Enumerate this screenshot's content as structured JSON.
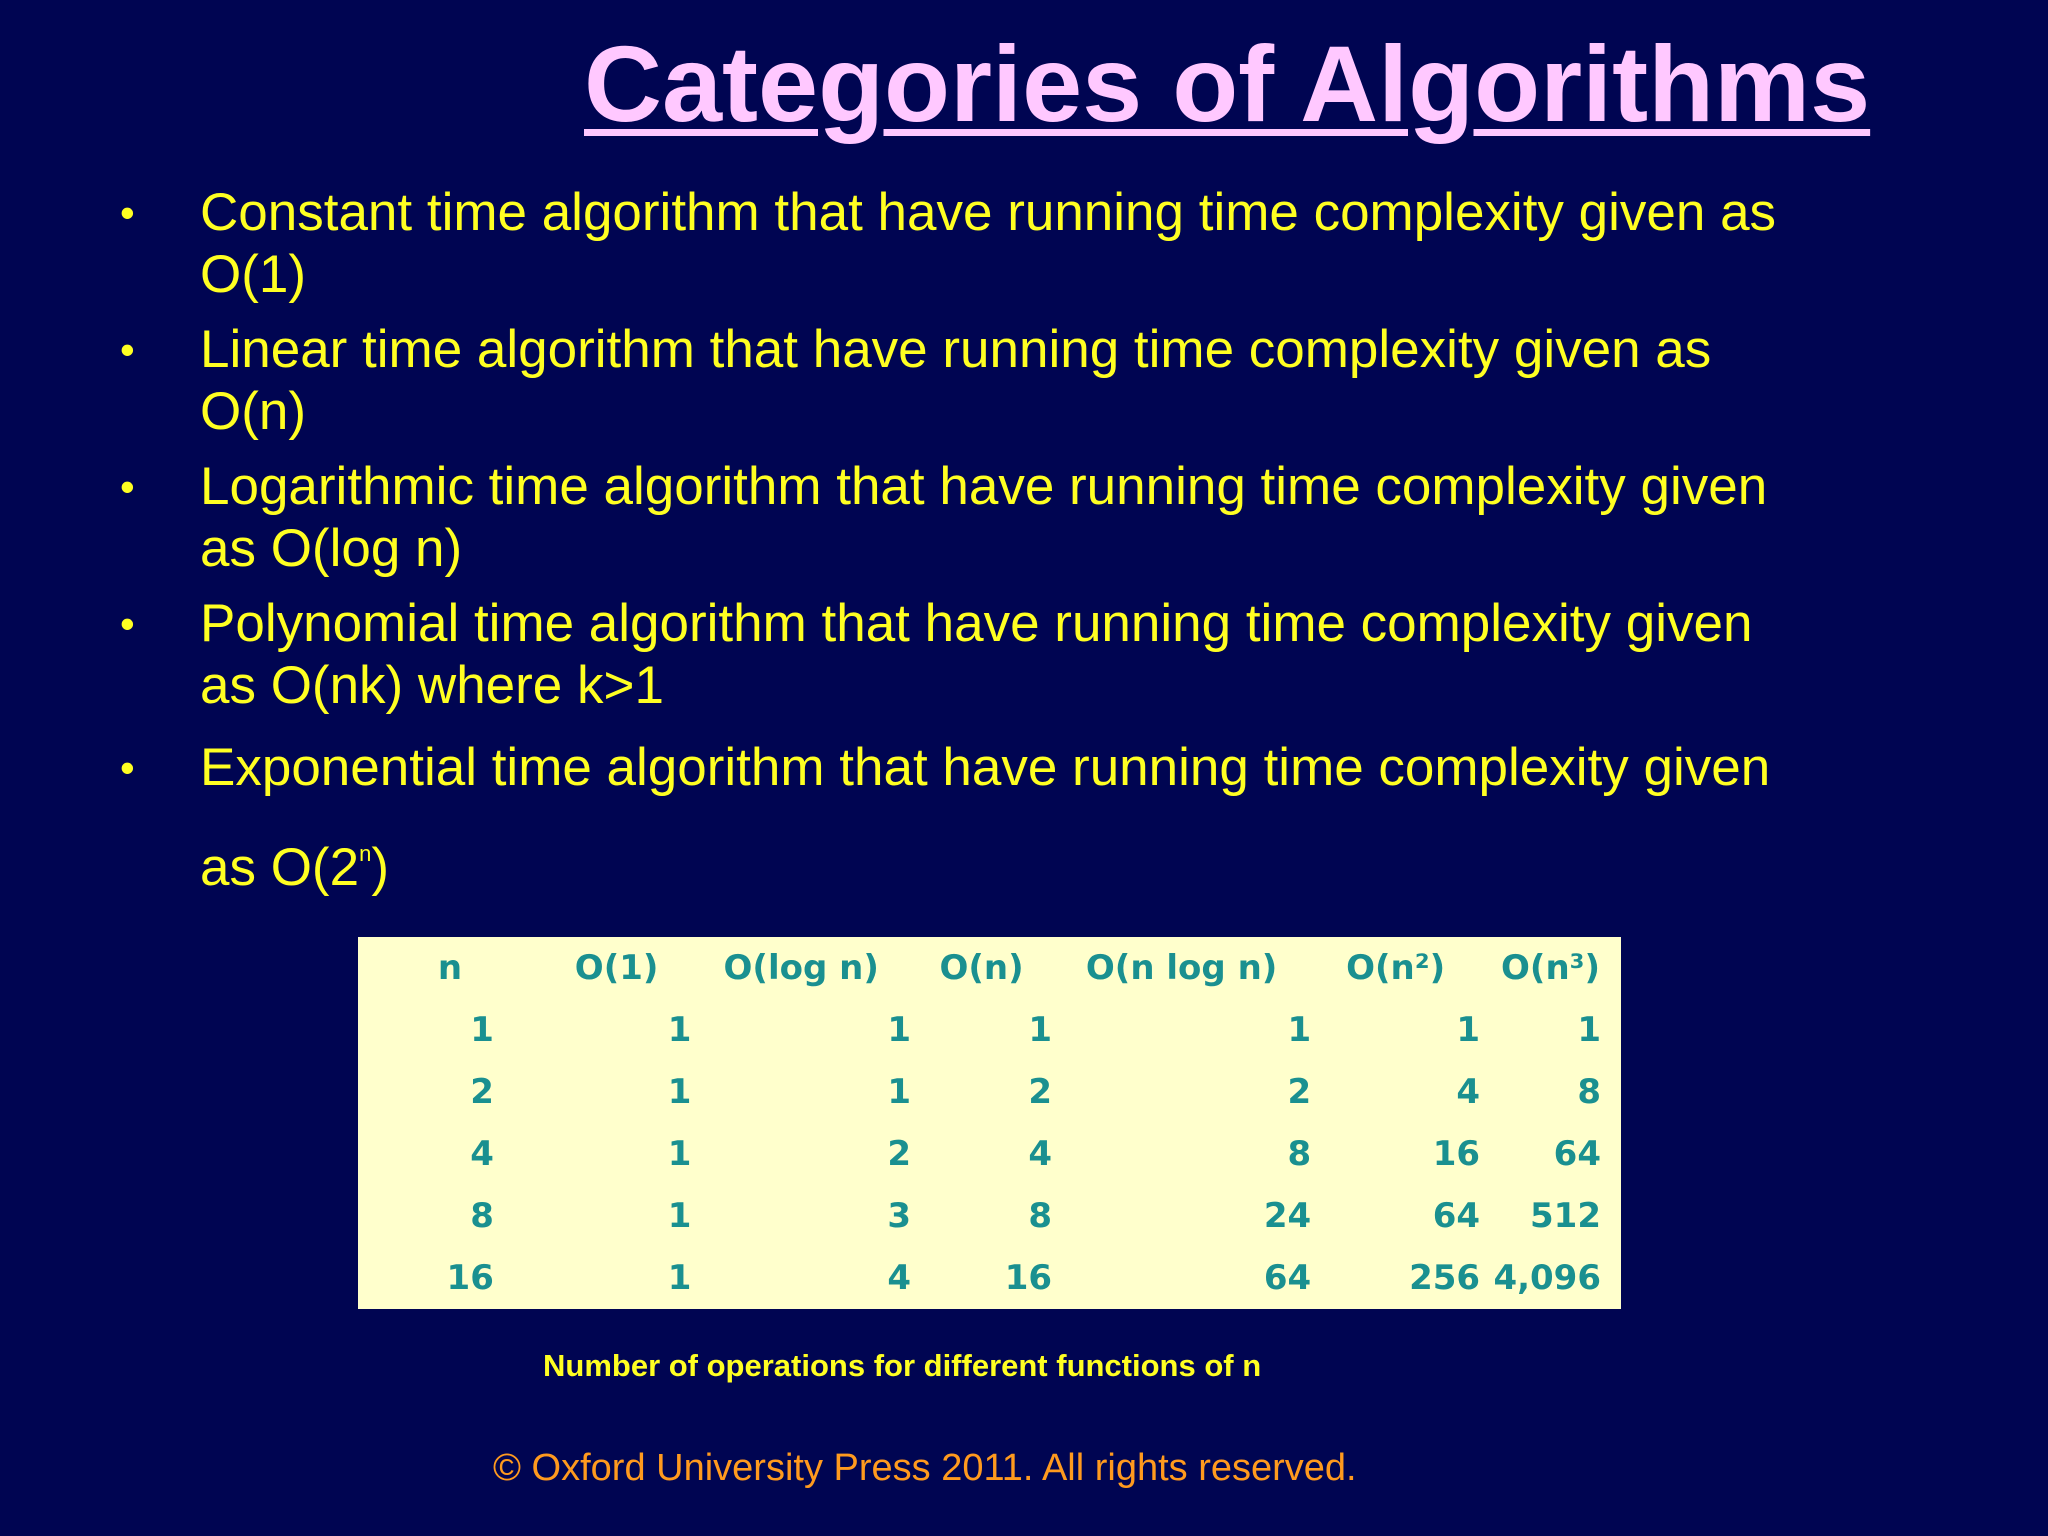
{
  "slide": {
    "title": "Categories of Algorithms",
    "bullets": [
      {
        "line1": "Constant time algorithm that have running time complexity given as",
        "line2": "O(1)"
      },
      {
        "line1": "Linear time algorithm that have running time complexity given as",
        "line2": "O(n)"
      },
      {
        "line1": "Logarithmic time algorithm that have running time complexity given",
        "line2": "as O(log n)"
      },
      {
        "line1": "Polynomial time algorithm that have running time complexity given",
        "line2": "as O(nk) where k>1"
      },
      {
        "line1": "Exponential time algorithm that have running time complexity given",
        "line2_before": "as O(2",
        "line2_sup": "n",
        "line2_after": ")"
      }
    ],
    "bullet_symbol": "•",
    "table": {
      "headers": [
        "n",
        "O(1)",
        "O(log n)",
        "O(n)",
        "O(n log n)",
        "O(n²)",
        "O(n³)"
      ],
      "rows": [
        [
          "1",
          "1",
          "1",
          "1",
          "1",
          "1",
          "1"
        ],
        [
          "2",
          "1",
          "1",
          "2",
          "2",
          "4",
          "8"
        ],
        [
          "4",
          "1",
          "2",
          "4",
          "8",
          "16",
          "64"
        ],
        [
          "8",
          "1",
          "3",
          "8",
          "24",
          "64",
          "512"
        ],
        [
          "16",
          "1",
          "4",
          "16",
          "64",
          "256",
          "4,096"
        ]
      ]
    },
    "caption": "Number of operations for different functions of n",
    "copyright": "© Oxford University Press 2011. All rights reserved.",
    "colors": {
      "background": "#000552",
      "title": "#ffc8ff",
      "bullet_text": "#ffff22",
      "table_bg": "#ffffcc",
      "table_text": "#1a9090",
      "copyright": "#ff9a1e"
    }
  }
}
